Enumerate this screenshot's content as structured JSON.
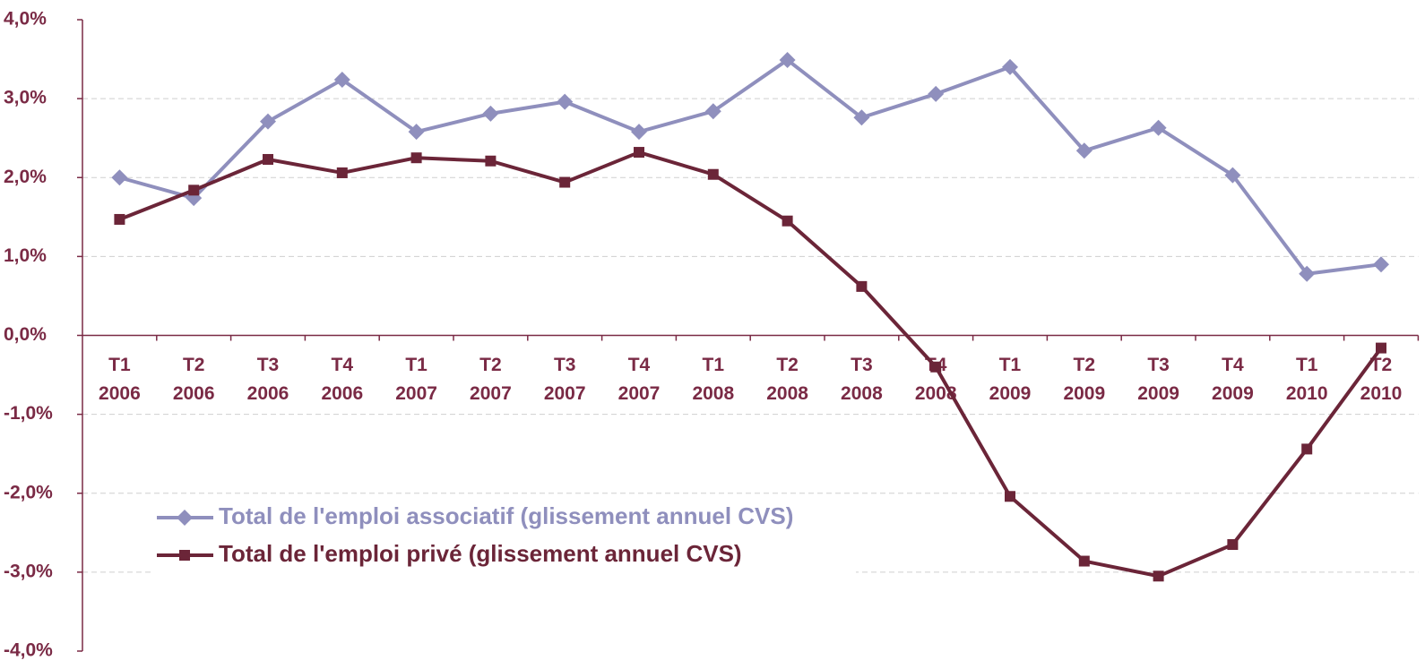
{
  "chart_data": {
    "type": "line",
    "categories": [
      [
        "T1",
        "2006"
      ],
      [
        "T2",
        "2006"
      ],
      [
        "T3",
        "2006"
      ],
      [
        "T4",
        "2006"
      ],
      [
        "T1",
        "2007"
      ],
      [
        "T2",
        "2007"
      ],
      [
        "T3",
        "2007"
      ],
      [
        "T4",
        "2007"
      ],
      [
        "T1",
        "2008"
      ],
      [
        "T2",
        "2008"
      ],
      [
        "T3",
        "2008"
      ],
      [
        "T4",
        "2008"
      ],
      [
        "T1",
        "2009"
      ],
      [
        "T2",
        "2009"
      ],
      [
        "T3",
        "2009"
      ],
      [
        "T4",
        "2009"
      ],
      [
        "T1",
        "2010"
      ],
      [
        "T2",
        "2010"
      ]
    ],
    "series": [
      {
        "name": "Total de l'emploi associatif (glissement annuel CVS)",
        "color": "#8f8fbd",
        "marker": "diamond",
        "values": [
          2.0,
          1.74,
          2.71,
          3.24,
          2.58,
          2.81,
          2.96,
          2.58,
          2.84,
          3.49,
          2.76,
          3.06,
          3.4,
          2.34,
          2.63,
          2.03,
          0.78,
          0.9
        ]
      },
      {
        "name": "Total de l'emploi privé (glissement annuel CVS)",
        "color": "#6b2538",
        "marker": "square",
        "values": [
          1.47,
          1.84,
          2.23,
          2.06,
          2.25,
          2.21,
          1.94,
          2.32,
          2.04,
          1.45,
          0.62,
          -0.4,
          -2.04,
          -2.86,
          -3.05,
          -2.65,
          -1.44,
          -0.16
        ]
      }
    ],
    "ylim": [
      -4,
      4
    ],
    "yticks": [
      {
        "value": -4,
        "label": "-4,0%"
      },
      {
        "value": -3,
        "label": "-3,0%"
      },
      {
        "value": -2,
        "label": "-2,0%"
      },
      {
        "value": -1,
        "label": "-1,0%"
      },
      {
        "value": 0,
        "label": "0,0%"
      },
      {
        "value": 1,
        "label": "1,0%"
      },
      {
        "value": 2,
        "label": "2,0%"
      },
      {
        "value": 3,
        "label": "3,0%"
      },
      {
        "value": 4,
        "label": "4,0%"
      }
    ],
    "grid": true,
    "legend": "lower left"
  }
}
